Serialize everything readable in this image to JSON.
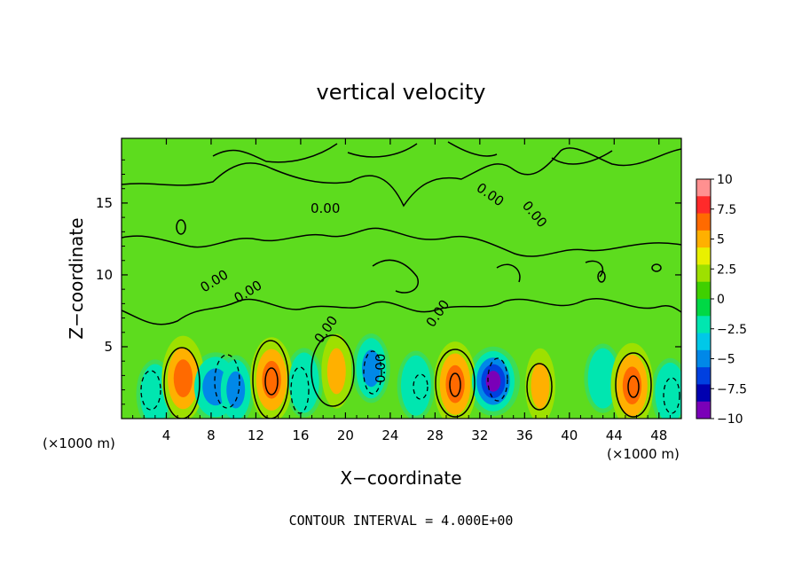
{
  "chart_data": {
    "type": "heatmap",
    "title": "vertical velocity",
    "xlabel": "X−coordinate",
    "ylabel": "Z−coordinate",
    "x_unit_left": "(×1000 m)",
    "x_unit_right": "(×1000 m)",
    "xlim": [
      0,
      50
    ],
    "ylim": [
      0,
      19.5
    ],
    "x_ticks": [
      4,
      8,
      12,
      16,
      20,
      24,
      28,
      32,
      36,
      40,
      44,
      48
    ],
    "y_ticks": [
      5,
      10,
      15
    ],
    "footer": "CONTOUR INTERVAL = 4.000E+00",
    "colorbar": {
      "labels": [
        "10",
        "7.5",
        "5",
        "2.5",
        "0",
        "−2.5",
        "−5",
        "−7.5",
        "−10"
      ],
      "colors": [
        "#ff9090",
        "#ff2a2a",
        "#ff6a00",
        "#ffb000",
        "#e9f000",
        "#9ee000",
        "#3fd000",
        "#00d845",
        "#00e6b0",
        "#00c8e8",
        "#0088e8",
        "#0040e0",
        "#0000b0",
        "#7a00b8"
      ]
    },
    "contour_labels": [
      "0.00",
      "0.00",
      "0.00",
      "0.00",
      "0.00",
      "0.00",
      "0.00",
      "0.00"
    ],
    "cells": [
      {
        "x": 3.0,
        "z": 1.7,
        "w": -4.5
      },
      {
        "x": 5.5,
        "z": 2.8,
        "w": 7.5
      },
      {
        "x": 8.4,
        "z": 2.2,
        "w": -6.0
      },
      {
        "x": 10.2,
        "z": 2.0,
        "w": -5.0
      },
      {
        "x": 13.4,
        "z": 2.7,
        "w": 8.0
      },
      {
        "x": 16.3,
        "z": 2.5,
        "w": -4.0
      },
      {
        "x": 19.2,
        "z": 3.3,
        "w": 5.5
      },
      {
        "x": 22.3,
        "z": 3.5,
        "w": -5.5
      },
      {
        "x": 26.3,
        "z": 2.3,
        "w": -3.5
      },
      {
        "x": 29.8,
        "z": 2.4,
        "w": 8.0
      },
      {
        "x": 33.2,
        "z": 2.6,
        "w": -10.0
      },
      {
        "x": 37.4,
        "z": 2.3,
        "w": 5.5
      },
      {
        "x": 43.0,
        "z": 2.8,
        "w": -3.5
      },
      {
        "x": 45.6,
        "z": 2.3,
        "w": 8.0
      },
      {
        "x": 49.0,
        "z": 1.8,
        "w": -4.0
      }
    ]
  }
}
